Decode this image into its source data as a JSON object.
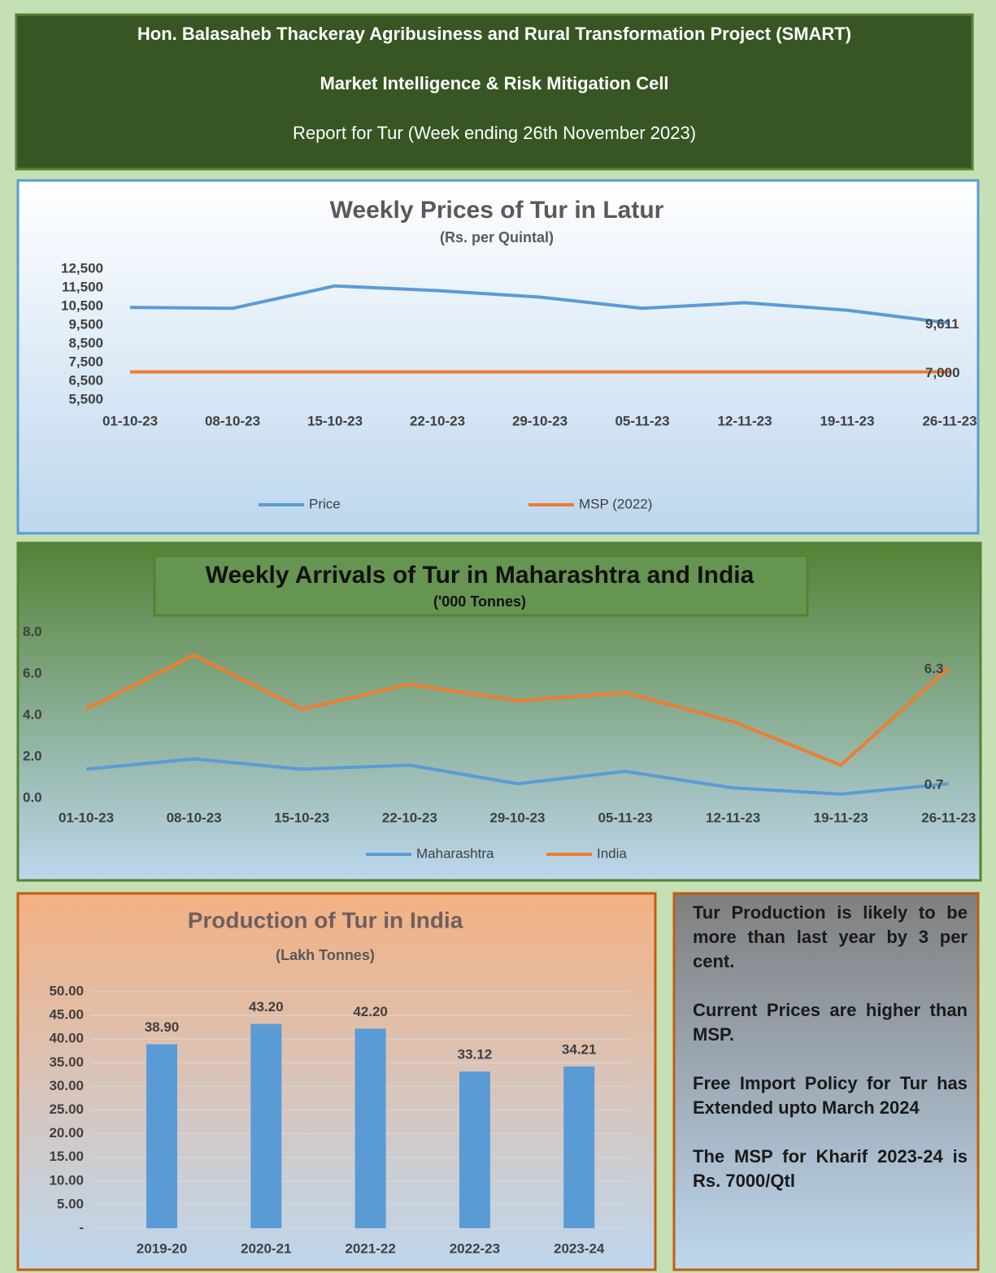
{
  "header": {
    "line1": "Hon. Balasaheb Thackeray Agribusiness and Rural Transformation Project (SMART)",
    "line2": "Market Intelligence & Risk Mitigation Cell",
    "line3": "Report for Tur (Week ending 26th November 2023)"
  },
  "chart_data": [
    {
      "type": "line",
      "title": "Weekly Prices of Tur in Latur",
      "subtitle": "(Rs. per Quintal)",
      "categories": [
        "01-10-23",
        "08-10-23",
        "15-10-23",
        "22-10-23",
        "29-10-23",
        "05-11-23",
        "12-11-23",
        "19-11-23",
        "26-11-23"
      ],
      "series": [
        {
          "name": "Price",
          "color": "#5b9bd5",
          "values": [
            10450,
            10400,
            11600,
            11350,
            11000,
            10400,
            10700,
            10300,
            9611
          ],
          "value_labels": [
            null,
            null,
            null,
            null,
            null,
            null,
            null,
            null,
            "9,611"
          ]
        },
        {
          "name": "MSP (2022)",
          "color": "#ed7d31",
          "values": [
            7000,
            7000,
            7000,
            7000,
            7000,
            7000,
            7000,
            7000,
            7000
          ],
          "value_labels": [
            null,
            null,
            null,
            null,
            null,
            null,
            null,
            null,
            "7,000"
          ]
        }
      ],
      "ylim": [
        5500,
        12500
      ],
      "yticks": [
        {
          "value": 5500,
          "label": "5,500"
        },
        {
          "value": 6500,
          "label": "6,500"
        },
        {
          "value": 7500,
          "label": "7,500"
        },
        {
          "value": 8500,
          "label": "8,500"
        },
        {
          "value": 9500,
          "label": "9,500"
        },
        {
          "value": 10500,
          "label": "10,500"
        },
        {
          "value": 11500,
          "label": "11,500"
        },
        {
          "value": 12500,
          "label": "12,500"
        }
      ],
      "grid": false,
      "legend": "bottom"
    },
    {
      "type": "line",
      "title": "Weekly Arrivals of Tur in Maharashtra and India",
      "subtitle": "('000 Tonnes)",
      "categories": [
        "01-10-23",
        "08-10-23",
        "15-10-23",
        "22-10-23",
        "29-10-23",
        "05-11-23",
        "12-11-23",
        "19-11-23",
        "26-11-23"
      ],
      "series": [
        {
          "name": "Maharashtra",
          "color": "#5b9bd5",
          "values": [
            1.4,
            1.9,
            1.4,
            1.6,
            0.7,
            1.3,
            0.5,
            0.2,
            0.7
          ],
          "value_labels": [
            null,
            null,
            null,
            null,
            null,
            null,
            null,
            null,
            "0.7"
          ]
        },
        {
          "name": "India",
          "color": "#ed7d31",
          "values": [
            4.3,
            6.9,
            4.3,
            5.5,
            4.7,
            5.1,
            3.7,
            1.6,
            6.3
          ],
          "value_labels": [
            null,
            null,
            null,
            null,
            null,
            null,
            null,
            null,
            "6.3"
          ]
        }
      ],
      "ylim": [
        0,
        8
      ],
      "yticks": [
        {
          "value": 0,
          "label": "0.0"
        },
        {
          "value": 2,
          "label": "2.0"
        },
        {
          "value": 4,
          "label": "4.0"
        },
        {
          "value": 6,
          "label": "6.0"
        },
        {
          "value": 8,
          "label": "8.0"
        }
      ],
      "grid": false,
      "legend": "bottom"
    },
    {
      "type": "bar",
      "title": "Production of Tur in India",
      "subtitle": "(Lakh Tonnes)",
      "categories": [
        "2019-20",
        "2020-21",
        "2021-22",
        "2022-23",
        "2023-24"
      ],
      "values": [
        38.9,
        43.2,
        42.2,
        33.12,
        34.21
      ],
      "value_labels": [
        "38.90",
        "43.20",
        "42.20",
        "33.12",
        "34.21"
      ],
      "color": "#5b9bd5",
      "ylim": [
        0,
        50
      ],
      "yticks": [
        {
          "value": 0,
          "label": "-"
        },
        {
          "value": 5,
          "label": "5.00"
        },
        {
          "value": 10,
          "label": "10.00"
        },
        {
          "value": 15,
          "label": "15.00"
        },
        {
          "value": 20,
          "label": "20.00"
        },
        {
          "value": 25,
          "label": "25.00"
        },
        {
          "value": 30,
          "label": "30.00"
        },
        {
          "value": 35,
          "label": "35.00"
        },
        {
          "value": 40,
          "label": "40.00"
        },
        {
          "value": 45,
          "label": "45.00"
        },
        {
          "value": 50,
          "label": "50.00"
        }
      ],
      "grid": true
    }
  ],
  "notes": [
    "Tur Production is likely to be more than last year by 3 per cent.",
    "Current Prices are higher than MSP.",
    "Free Import Policy for Tur has Extended upto March 2024",
    "The MSP for Kharif 2023-24 is Rs. 7000/Qtl"
  ]
}
